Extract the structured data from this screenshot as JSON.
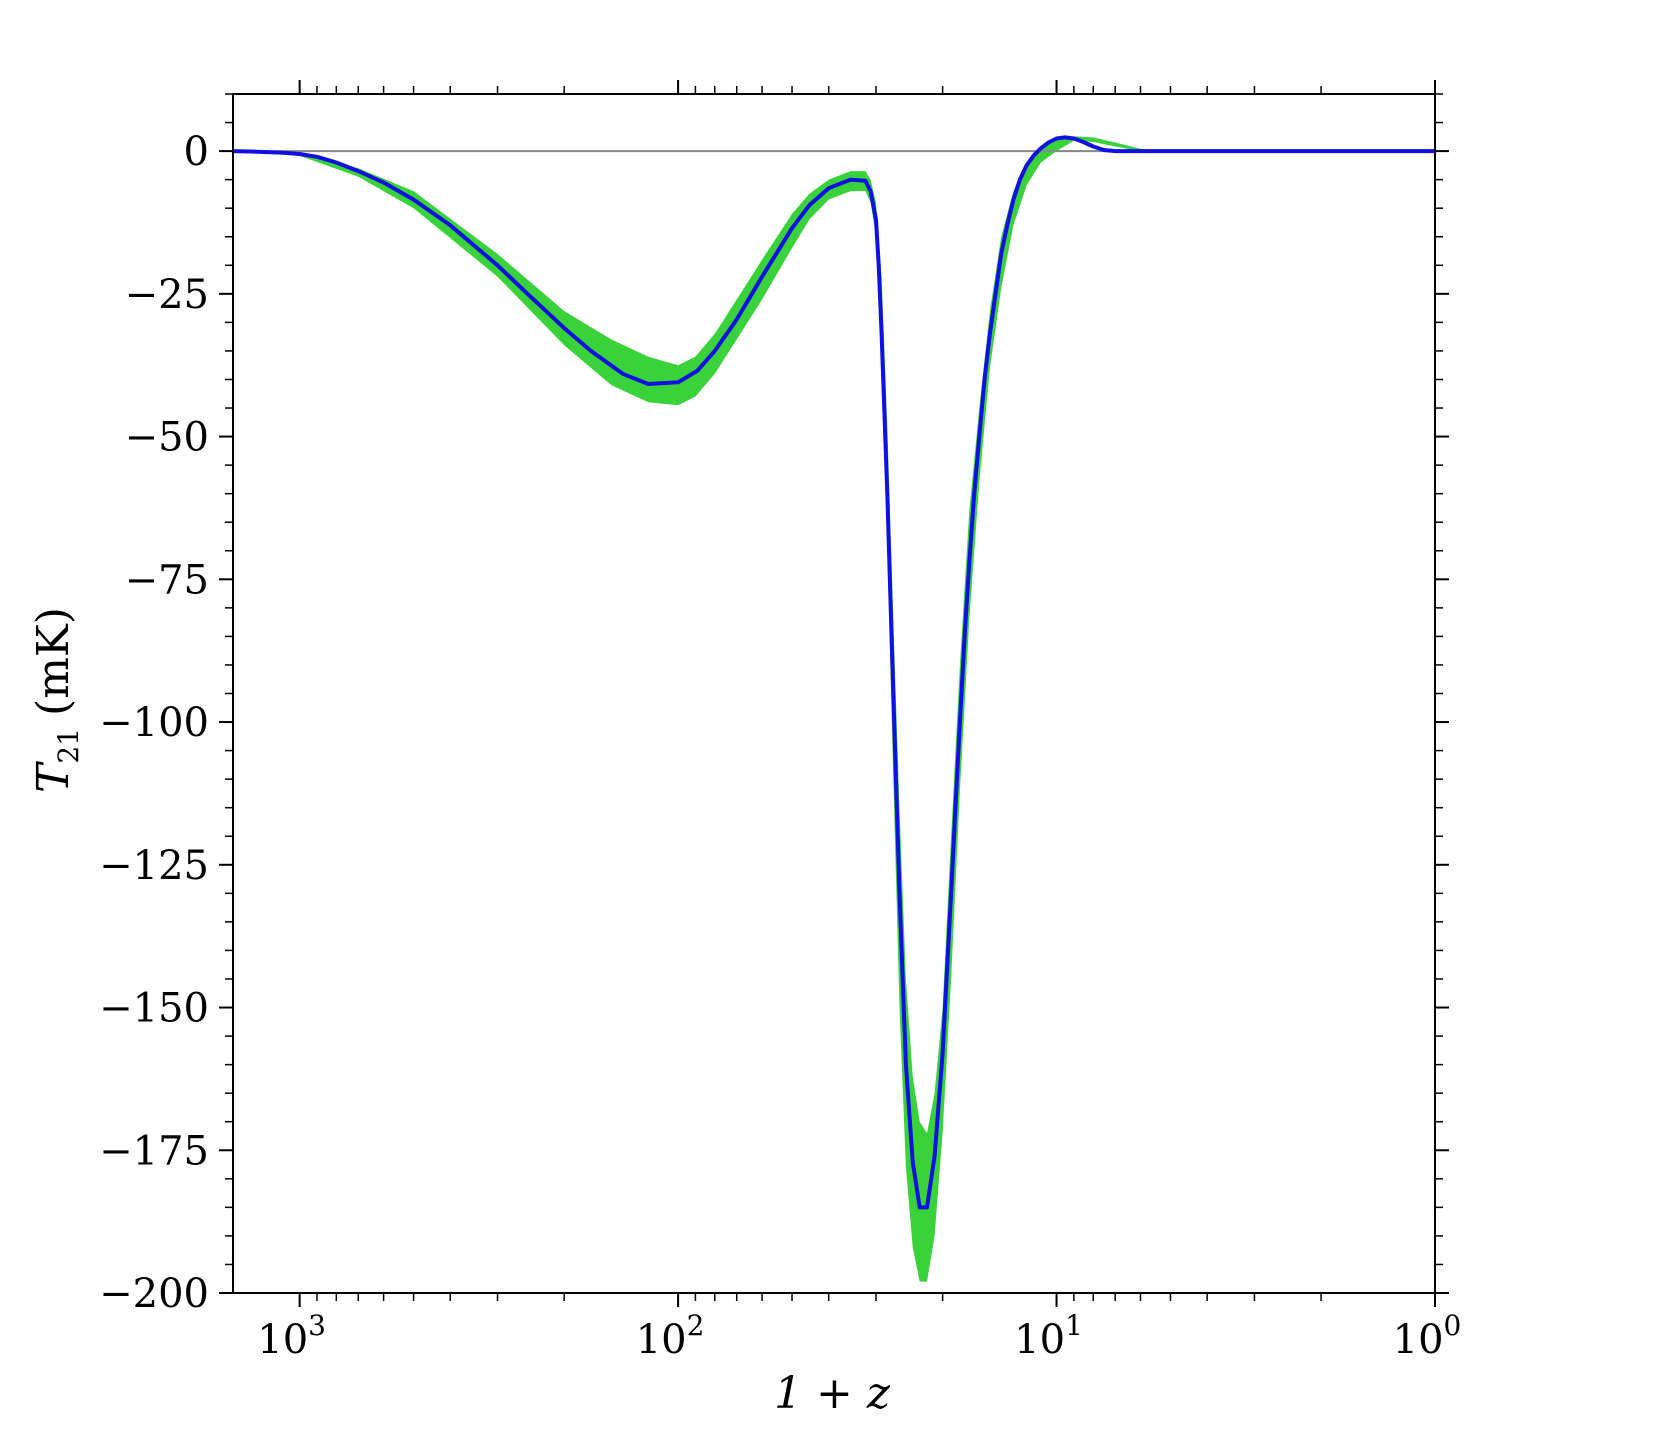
{
  "chart_data": {
    "type": "line",
    "xlabel": "1 + z",
    "ylabel": "T21 (mK)",
    "ylabel_parts": {
      "symbol": "T",
      "subscript": "21",
      "unit": "(mK)"
    },
    "xscale": "log",
    "xaxis_inverted": true,
    "xlim": [
      1500,
      1
    ],
    "ylim": [
      -200,
      10
    ],
    "grid": false,
    "x_ticks": [
      {
        "base": "10",
        "exp": "3",
        "value": 1000
      },
      {
        "base": "10",
        "exp": "2",
        "value": 100
      },
      {
        "base": "10",
        "exp": "1",
        "value": 10
      },
      {
        "base": "10",
        "exp": "0",
        "value": 1
      }
    ],
    "y_ticks": [
      {
        "label": "0",
        "value": 0
      },
      {
        "label": "−25",
        "value": -25
      },
      {
        "label": "−50",
        "value": -50
      },
      {
        "label": "−75",
        "value": -75
      },
      {
        "label": "−100",
        "value": -100
      },
      {
        "label": "−125",
        "value": -125
      },
      {
        "label": "−150",
        "value": -150
      },
      {
        "label": "−175",
        "value": -175
      },
      {
        "label": "−200",
        "value": -200
      }
    ],
    "reference_line": {
      "y": 0,
      "color": "#888888"
    },
    "series": [
      {
        "kind": "line",
        "color": "#1010e0",
        "x": [
          1500,
          1300,
          1100,
          1000,
          900,
          800,
          700,
          600,
          500,
          400,
          300,
          250,
          200,
          170,
          140,
          120,
          100,
          89,
          80,
          70,
          60,
          50,
          45,
          40,
          35,
          32,
          31,
          30,
          29.5,
          29,
          28,
          27,
          26,
          25,
          24,
          23,
          22,
          21,
          20,
          19,
          18.5,
          18,
          17.5,
          17,
          16.5,
          16,
          15.5,
          15,
          14.5,
          14,
          13.5,
          13,
          12.5,
          12,
          11.5,
          11,
          10.5,
          10,
          9.5,
          9,
          8.5,
          8,
          7.5,
          7,
          6.5,
          6,
          5,
          4,
          3,
          2,
          1
        ],
        "y": [
          0,
          -0.1,
          -0.3,
          -0.5,
          -1,
          -2,
          -3.5,
          -5.5,
          -8.5,
          -13,
          -20,
          -25,
          -31,
          -35,
          -39,
          -40.8,
          -40.5,
          -38.5,
          -35,
          -29.5,
          -22,
          -13.5,
          -9.5,
          -6.5,
          -5,
          -5.2,
          -7,
          -12,
          -20,
          -32,
          -60,
          -95,
          -130,
          -160,
          -177,
          -185,
          -185,
          -176,
          -158,
          -130,
          -115,
          -100,
          -85,
          -72,
          -60,
          -50,
          -40,
          -32,
          -25,
          -18,
          -13,
          -8.5,
          -5,
          -2.5,
          -0.8,
          0.5,
          1.5,
          2.2,
          2.4,
          2.2,
          1.6,
          0.8,
          0.2,
          0,
          0,
          0,
          0,
          0,
          0,
          0,
          0
        ]
      }
    ],
    "band": {
      "kind": "band",
      "color": "#3ad23a",
      "x": [
        1500,
        1000,
        700,
        500,
        300,
        200,
        150,
        120,
        100,
        90,
        80,
        70,
        60,
        50,
        45,
        40,
        35,
        32,
        31,
        30,
        29,
        28,
        27,
        26,
        25,
        24,
        23,
        22,
        21,
        20,
        19,
        18,
        17,
        16,
        15,
        14,
        13,
        12,
        11,
        10,
        9,
        8,
        7,
        6,
        5,
        1
      ],
      "upper": [
        0,
        -0.3,
        -3,
        -7,
        -18,
        -28,
        -33,
        -36,
        -37.5,
        -36,
        -32,
        -26,
        -19,
        -11,
        -7.5,
        -5,
        -3.5,
        -3.5,
        -5,
        -9,
        -22,
        -48,
        -82,
        -115,
        -145,
        -162,
        -170,
        -172,
        -165,
        -150,
        -120,
        -90,
        -63,
        -45,
        -28,
        -15,
        -7,
        -2,
        0.5,
        2,
        2.6,
        2.4,
        1.5,
        0.4,
        0,
        0
      ],
      "lower": [
        0,
        -0.8,
        -4.5,
        -10,
        -22,
        -34,
        -41,
        -44,
        -44.5,
        -43,
        -39,
        -33,
        -26,
        -17,
        -12,
        -8.5,
        -7,
        -7,
        -9,
        -15,
        -35,
        -70,
        -110,
        -150,
        -178,
        -192,
        -198,
        -198,
        -190,
        -172,
        -145,
        -112,
        -82,
        -58,
        -38,
        -24,
        -13,
        -6,
        -2,
        0,
        1.8,
        1.6,
        0.8,
        0,
        0,
        0
      ]
    }
  }
}
